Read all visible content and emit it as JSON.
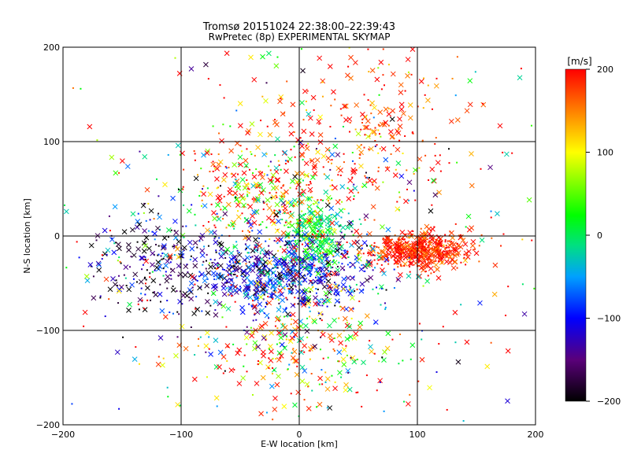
{
  "chart_data": {
    "type": "scatter",
    "title": "Tromsø 20151024 22:38:00–22:39:43",
    "subtitle": "RwPretec (8p) EXPERIMENTAL SKYMAP",
    "xlabel": "E-W location [km]",
    "ylabel": "N-S location [km]",
    "xlim": [
      -200,
      200
    ],
    "ylim": [
      -200,
      200
    ],
    "x_ticks": [
      -200,
      -100,
      0,
      100,
      200
    ],
    "y_ticks": [
      -200,
      -100,
      0,
      100,
      200
    ],
    "grid": true,
    "colorbar": {
      "label": "[m/s]",
      "range": [
        -200,
        200
      ],
      "ticks": [
        200,
        100,
        0,
        -100,
        -200
      ],
      "colors": [
        "#000000",
        "#5a007a",
        "#0000ff",
        "#00a0ff",
        "#00e080",
        "#00ff00",
        "#ffff00",
        "#ff8000",
        "#ff0000"
      ]
    },
    "clusters": [
      {
        "x": 100,
        "y": -15,
        "sx": 22,
        "sy": 10,
        "v": 190,
        "vs": 30,
        "n": 520
      },
      {
        "x": -15,
        "y": -40,
        "sx": 38,
        "sy": 20,
        "v": -110,
        "vs": 55,
        "n": 650
      },
      {
        "x": 15,
        "y": 0,
        "sx": 14,
        "sy": 18,
        "v": 20,
        "vs": 45,
        "n": 260
      },
      {
        "x": -30,
        "y": 45,
        "sx": 40,
        "sy": 30,
        "v": 140,
        "vs": 90,
        "n": 330
      },
      {
        "x": -110,
        "y": -30,
        "sx": 35,
        "sy": 25,
        "v": -170,
        "vs": 60,
        "n": 220
      },
      {
        "x": 60,
        "y": 120,
        "sx": 40,
        "sy": 40,
        "v": 180,
        "vs": 40,
        "n": 200
      },
      {
        "x": 0,
        "y": -120,
        "sx": 45,
        "sy": 35,
        "v": 120,
        "vs": 110,
        "n": 260
      },
      {
        "x": 0,
        "y": 0,
        "sx": 115,
        "sy": 100,
        "v": 60,
        "vs": 180,
        "n": 520
      }
    ]
  }
}
